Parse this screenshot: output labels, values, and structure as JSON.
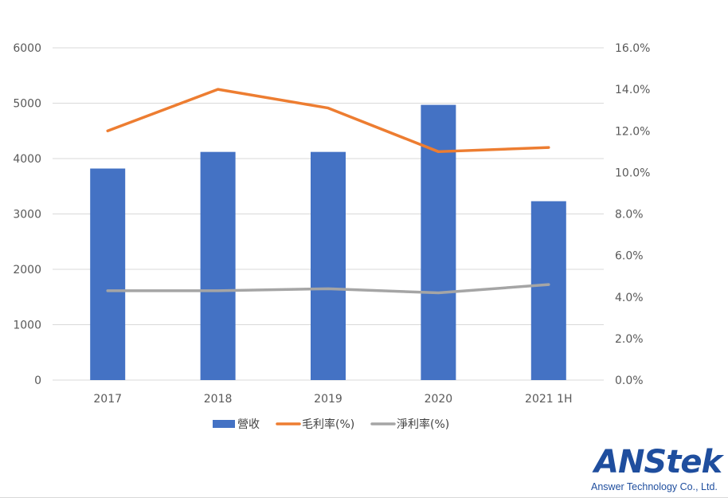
{
  "chart_data": {
    "type": "bar",
    "categories": [
      "2017",
      "2018",
      "2019",
      "2020",
      "2021 1H"
    ],
    "series": [
      {
        "name": "營收",
        "kind": "bar",
        "axis": "left",
        "color": "#4472c4",
        "values": [
          3820,
          4120,
          4120,
          4970,
          3230
        ]
      },
      {
        "name": "毛利率(%)",
        "kind": "line",
        "axis": "right",
        "color": "#ed7d31",
        "values": [
          0.12,
          0.14,
          0.131,
          0.11,
          0.112
        ]
      },
      {
        "name": "淨利率(%)",
        "kind": "line",
        "axis": "right",
        "color": "#a5a5a5",
        "values": [
          0.043,
          0.043,
          0.044,
          0.042,
          0.046
        ]
      }
    ],
    "left_axis": {
      "ylim": [
        0,
        6000
      ],
      "ticks": [
        "0",
        "1000",
        "2000",
        "3000",
        "4000",
        "5000",
        "6000"
      ]
    },
    "right_axis": {
      "ylim": [
        0,
        0.16
      ],
      "ticks": [
        "0.0%",
        "2.0%",
        "4.0%",
        "6.0%",
        "8.0%",
        "10.0%",
        "12.0%",
        "14.0%",
        "16.0%"
      ]
    },
    "grid": true,
    "legend_position": "bottom"
  },
  "logo": {
    "word": "ANStek",
    "subtitle": "Answer Technology Co., Ltd."
  }
}
